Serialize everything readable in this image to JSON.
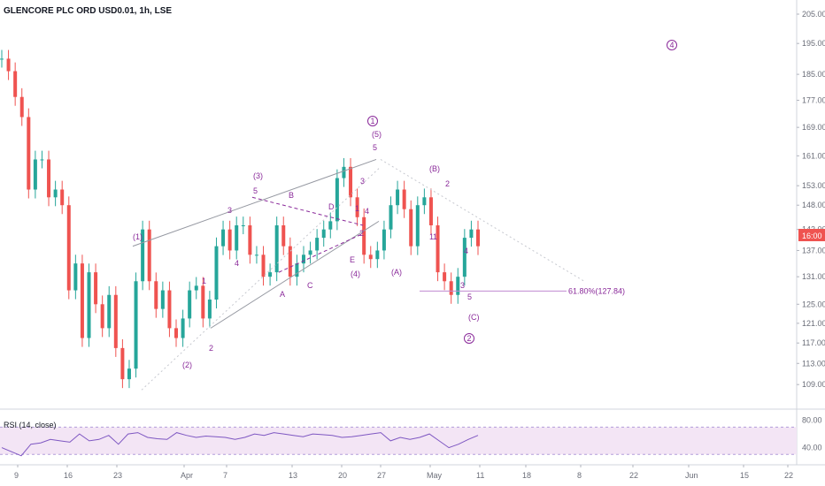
{
  "chart_data": {
    "type": "line",
    "title": "GLENCORE PLC ORD USD0.01, 1h, LSE",
    "y_ticks": [
      "205.00",
      "195.00",
      "185.00",
      "177.00",
      "169.00",
      "161.00",
      "153.00",
      "148.00",
      "142.00",
      "137.00",
      "131.00",
      "125.00",
      "121.00",
      "117.00",
      "113.00",
      "109.00"
    ],
    "y_scale": "log",
    "ylim": [
      105,
      210
    ],
    "x_ticks": [
      "9",
      "16",
      "23",
      "Apr",
      "7",
      "13",
      "20",
      "27",
      "May",
      "11",
      "18",
      "22",
      "8",
      "Jun",
      "15",
      "22"
    ],
    "current_price_label": "16:00",
    "current_price": 140,
    "colors": {
      "up": "#26a69a",
      "down": "#ef5350",
      "wave": "#9c27b0",
      "price_tag": "#ef5350"
    },
    "series": [
      {
        "values": [
          190,
          186,
          178,
          172,
          152,
          160,
          160,
          150,
          152,
          148,
          128,
          134,
          118,
          132,
          125,
          120,
          127,
          116,
          110,
          112,
          130,
          142,
          130,
          124,
          128,
          120,
          118,
          122,
          128,
          129,
          122,
          126,
          138,
          142,
          137,
          143,
          143,
          136,
          136,
          131,
          132,
          143,
          138,
          131,
          134,
          136,
          137,
          140,
          142,
          144,
          155,
          158,
          150,
          145,
          136,
          135,
          137,
          142,
          148,
          152,
          147,
          138,
          148,
          150,
          143,
          132,
          130,
          127,
          131,
          140,
          142,
          138
        ]
      }
    ],
    "wave_labels": [
      "(1)",
      "(2)",
      "1",
      "2",
      "3",
      "4",
      "5",
      "(3)",
      "A",
      "B",
      "C",
      "D",
      "E",
      "(4)",
      "1",
      "2",
      "3",
      "4",
      "5",
      "(5)",
      "1",
      "(A)",
      "(B)",
      "1",
      "2",
      "3",
      "4",
      "5",
      "(C)"
    ],
    "circled_labels": [
      "1",
      "2",
      "4"
    ],
    "fib_label": "61.80%(127.84)",
    "rsi": {
      "title": "RSI (14, close)",
      "y_ticks": [
        "80.00",
        "40.00"
      ],
      "band": [
        30,
        70
      ],
      "values": [
        40,
        34,
        28,
        45,
        47,
        52,
        50,
        48,
        60,
        50,
        52,
        58,
        45,
        60,
        62,
        55,
        53,
        52,
        62,
        58,
        55,
        57,
        56,
        55,
        52,
        55,
        60,
        58,
        62,
        60,
        58,
        56,
        60,
        59,
        58,
        55,
        56,
        58,
        60,
        62,
        50,
        55,
        52,
        55,
        60,
        50,
        40,
        45,
        52,
        58
      ]
    }
  }
}
